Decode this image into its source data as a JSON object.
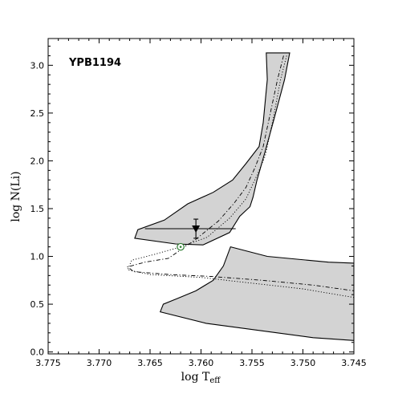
{
  "chart_data": {
    "type": "area",
    "title": "",
    "annotation": "YPB1194",
    "xlabel": "log T",
    "xlabel_sub": "eff",
    "ylabel": "log N(Li)",
    "xlim": [
      3.775,
      3.745
    ],
    "ylim": [
      -0.02,
      3.28
    ],
    "x_reversed": true,
    "grid": false,
    "x_ticks": [
      3.775,
      3.77,
      3.765,
      3.76,
      3.755,
      3.75,
      3.745
    ],
    "x_tick_labels": [
      "3.775",
      "3.770",
      "3.765",
      "3.760",
      "3.755",
      "3.750",
      "3.745"
    ],
    "y_ticks": [
      0.0,
      0.5,
      1.0,
      1.5,
      2.0,
      2.5,
      3.0
    ],
    "y_tick_labels": [
      "0.0",
      "0.5",
      "1.0",
      "1.5",
      "2.0",
      "2.5",
      "3.0"
    ],
    "colors": {
      "band_fill": "#d3d3d3",
      "line": "#000000",
      "star_marker": "#2e7d32"
    },
    "uncertainty_bands": [
      {
        "kind": "upper-band",
        "outline": [
          [
            3.7536,
            3.13
          ],
          [
            3.7513,
            3.13
          ],
          [
            3.7518,
            2.85
          ],
          [
            3.7528,
            2.45
          ],
          [
            3.7537,
            2.1
          ],
          [
            3.7545,
            1.8
          ],
          [
            3.7549,
            1.62
          ],
          [
            3.7552,
            1.52
          ],
          [
            3.7562,
            1.42
          ],
          [
            3.7572,
            1.25
          ],
          [
            3.7598,
            1.12
          ],
          [
            3.7625,
            1.13
          ],
          [
            3.7665,
            1.19
          ],
          [
            3.7662,
            1.28
          ],
          [
            3.7636,
            1.38
          ],
          [
            3.7613,
            1.55
          ],
          [
            3.7588,
            1.67
          ],
          [
            3.7569,
            1.8
          ],
          [
            3.7556,
            1.97
          ],
          [
            3.7543,
            2.15
          ],
          [
            3.7539,
            2.4
          ],
          [
            3.7535,
            2.85
          ],
          [
            3.7536,
            3.13
          ]
        ]
      },
      {
        "kind": "lower-band",
        "outline": [
          [
            3.7571,
            1.1
          ],
          [
            3.7535,
            1.0
          ],
          [
            3.7495,
            0.96
          ],
          [
            3.7475,
            0.94
          ],
          [
            3.745,
            0.93
          ],
          [
            3.745,
            0.12
          ],
          [
            3.749,
            0.15
          ],
          [
            3.7595,
            0.3
          ],
          [
            3.764,
            0.42
          ],
          [
            3.7637,
            0.5
          ],
          [
            3.7623,
            0.56
          ],
          [
            3.7605,
            0.64
          ],
          [
            3.7588,
            0.75
          ],
          [
            3.7578,
            0.9
          ],
          [
            3.7571,
            1.1
          ]
        ]
      }
    ],
    "series": [
      {
        "style": "dash-dot",
        "x": [
          3.7519,
          3.7525,
          3.7532,
          3.7539,
          3.7547,
          3.7556,
          3.7568,
          3.7583,
          3.7605,
          3.7632,
          3.7655,
          3.7672,
          3.7666,
          3.763,
          3.759,
          3.754,
          3.749,
          3.745
        ],
        "y": [
          3.1,
          2.85,
          2.5,
          2.15,
          1.93,
          1.72,
          1.55,
          1.37,
          1.18,
          0.98,
          0.94,
          0.89,
          0.84,
          0.81,
          0.79,
          0.75,
          0.7,
          0.64
        ]
      },
      {
        "style": "dotted",
        "x": [
          3.7516,
          3.7522,
          3.7529,
          3.7537,
          3.7545,
          3.7556,
          3.7572,
          3.7594,
          3.762,
          3.7646,
          3.7668,
          3.7672,
          3.765,
          3.76,
          3.755,
          3.75,
          3.745
        ],
        "y": [
          3.1,
          2.85,
          2.45,
          2.05,
          1.85,
          1.6,
          1.4,
          1.2,
          1.1,
          1.02,
          0.96,
          0.86,
          0.81,
          0.78,
          0.72,
          0.66,
          0.57
        ]
      }
    ],
    "observed_point": {
      "x": 3.7605,
      "y": 1.29,
      "y_err_upper": 0.1,
      "y_err_lower": 0.1,
      "x_err_range": [
        3.7655,
        3.7566
      ],
      "marker": "triangle-down"
    },
    "sun_point": {
      "x": 3.762,
      "y": 1.1,
      "marker": "sun"
    }
  }
}
